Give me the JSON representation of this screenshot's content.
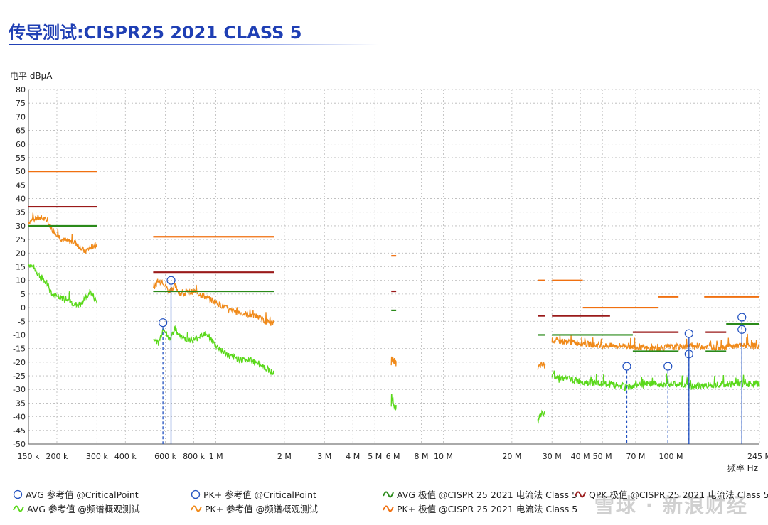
{
  "title": "传导测试:CISPR25 2021 CLASS 5",
  "watermark": "雪球 · 新浪财经",
  "colors": {
    "pk_limit": "#f07010",
    "qp_limit": "#9a1a1a",
    "avg_limit": "#2a8a1a",
    "pk_trace": "#f08a1a",
    "avg_trace": "#5ad81a",
    "marker": "#2050c0",
    "grid": "#b8b8b8"
  },
  "chart_data": {
    "type": "line",
    "title": "传导测试:CISPR25 2021 CLASS 5",
    "ylabel": "电平 dBµA",
    "xlabel": "频率 Hz",
    "x_scale": "log",
    "xlim": [
      150000,
      245000000
    ],
    "ylim": [
      -50,
      80
    ],
    "y_ticks": [
      80,
      75,
      70,
      65,
      60,
      55,
      50,
      45,
      40,
      35,
      30,
      25,
      20,
      15,
      10,
      5,
      0,
      -5,
      -10,
      -15,
      -20,
      -25,
      -30,
      -35,
      -40,
      -45,
      -50
    ],
    "x_ticks": [
      {
        "v": 150000,
        "label": "150 k"
      },
      {
        "v": 200000,
        "label": "200 k"
      },
      {
        "v": 300000,
        "label": "300 k"
      },
      {
        "v": 400000,
        "label": "400 k"
      },
      {
        "v": 600000,
        "label": "600 k"
      },
      {
        "v": 800000,
        "label": "800 k"
      },
      {
        "v": 1000000,
        "label": "1 M"
      },
      {
        "v": 2000000,
        "label": "2 M"
      },
      {
        "v": 3000000,
        "label": "3 M"
      },
      {
        "v": 4000000,
        "label": "4 M"
      },
      {
        "v": 5000000,
        "label": "5 M"
      },
      {
        "v": 6000000,
        "label": "6 M"
      },
      {
        "v": 8000000,
        "label": "8 M"
      },
      {
        "v": 10000000,
        "label": "10 M"
      },
      {
        "v": 20000000,
        "label": "20 M"
      },
      {
        "v": 30000000,
        "label": "30 M"
      },
      {
        "v": 40000000,
        "label": "40 M"
      },
      {
        "v": 50000000,
        "label": "50 M"
      },
      {
        "v": 70000000,
        "label": "70 M"
      },
      {
        "v": 100000000,
        "label": "100 M"
      },
      {
        "v": 245000000,
        "label": "245 M"
      }
    ],
    "limits": [
      {
        "kind": "pk",
        "x0": 150000,
        "x1": 300000,
        "y": 50
      },
      {
        "kind": "qp",
        "x0": 150000,
        "x1": 300000,
        "y": 37
      },
      {
        "kind": "avg",
        "x0": 150000,
        "x1": 300000,
        "y": 30
      },
      {
        "kind": "pk",
        "x0": 530000,
        "x1": 1800000,
        "y": 26
      },
      {
        "kind": "qp",
        "x0": 530000,
        "x1": 1800000,
        "y": 13
      },
      {
        "kind": "avg",
        "x0": 530000,
        "x1": 1800000,
        "y": 6
      },
      {
        "kind": "pk",
        "x0": 5900000,
        "x1": 6200000,
        "y": 19
      },
      {
        "kind": "qp",
        "x0": 5900000,
        "x1": 6200000,
        "y": 6
      },
      {
        "kind": "avg",
        "x0": 5900000,
        "x1": 6200000,
        "y": -1
      },
      {
        "kind": "pk",
        "x0": 26000000,
        "x1": 28000000,
        "y": 10
      },
      {
        "kind": "qp",
        "x0": 26000000,
        "x1": 28000000,
        "y": -3
      },
      {
        "kind": "avg",
        "x0": 26000000,
        "x1": 28000000,
        "y": -10
      },
      {
        "kind": "pk",
        "x0": 30000000,
        "x1": 41000000,
        "y": 10
      },
      {
        "kind": "pk",
        "x0": 41000000,
        "x1": 88000000,
        "y": 0
      },
      {
        "kind": "pk",
        "x0": 88000000,
        "x1": 108000000,
        "y": 4
      },
      {
        "kind": "pk",
        "x0": 140000000,
        "x1": 245000000,
        "y": 4
      },
      {
        "kind": "qp",
        "x0": 30000000,
        "x1": 54000000,
        "y": -3
      },
      {
        "kind": "qp",
        "x0": 68000000,
        "x1": 108000000,
        "y": -9
      },
      {
        "kind": "qp",
        "x0": 142000000,
        "x1": 175000000,
        "y": -9
      },
      {
        "kind": "avg",
        "x0": 30000000,
        "x1": 68000000,
        "y": -10
      },
      {
        "kind": "avg",
        "x0": 68000000,
        "x1": 108000000,
        "y": -16
      },
      {
        "kind": "avg",
        "x0": 142000000,
        "x1": 175000000,
        "y": -16
      },
      {
        "kind": "avg",
        "x0": 175000000,
        "x1": 245000000,
        "y": -6
      }
    ],
    "pk_trace": [
      {
        "x0": 150000,
        "x1": 300000,
        "pts": [
          [
            150000,
            31.5
          ],
          [
            160000,
            32.5
          ],
          [
            170000,
            33
          ],
          [
            180000,
            32
          ],
          [
            190000,
            29
          ],
          [
            200000,
            27
          ],
          [
            210000,
            25
          ],
          [
            220000,
            24.5
          ],
          [
            240000,
            24
          ],
          [
            255000,
            22
          ],
          [
            265000,
            20.5
          ],
          [
            280000,
            22
          ],
          [
            300000,
            23
          ]
        ]
      },
      {
        "x0": 530000,
        "x1": 1800000,
        "pts": [
          [
            530000,
            7
          ],
          [
            550000,
            9
          ],
          [
            580000,
            10
          ],
          [
            620000,
            6
          ],
          [
            660000,
            8
          ],
          [
            700000,
            5
          ],
          [
            800000,
            6
          ],
          [
            900000,
            4
          ],
          [
            1000000,
            2
          ],
          [
            1150000,
            -1
          ],
          [
            1300000,
            -2
          ],
          [
            1500000,
            -3
          ],
          [
            1650000,
            -5
          ],
          [
            1800000,
            -6
          ]
        ]
      },
      {
        "x0": 5900000,
        "x1": 6200000,
        "pts": [
          [
            5900000,
            -18
          ],
          [
            6000000,
            -19
          ],
          [
            6100000,
            -20
          ],
          [
            6200000,
            -20.5
          ]
        ]
      },
      {
        "x0": 26000000,
        "x1": 28000000,
        "pts": [
          [
            26000000,
            -22
          ],
          [
            27000000,
            -21
          ],
          [
            28000000,
            -21
          ]
        ]
      },
      {
        "x0": 30000000,
        "x1": 245000000,
        "pts": [
          [
            30000000,
            -12
          ],
          [
            40000000,
            -13
          ],
          [
            50000000,
            -14
          ],
          [
            65000000,
            -14
          ],
          [
            80000000,
            -15
          ],
          [
            100000000,
            -14.5
          ],
          [
            130000000,
            -14
          ],
          [
            160000000,
            -14.5
          ],
          [
            200000000,
            -14
          ],
          [
            245000000,
            -14
          ]
        ]
      }
    ],
    "avg_trace": [
      {
        "x0": 150000,
        "x1": 300000,
        "pts": [
          [
            150000,
            16
          ],
          [
            160000,
            14
          ],
          [
            170000,
            11
          ],
          [
            180000,
            9
          ],
          [
            190000,
            5
          ],
          [
            200000,
            4
          ],
          [
            220000,
            3
          ],
          [
            240000,
            1
          ],
          [
            255000,
            1
          ],
          [
            265000,
            3
          ],
          [
            280000,
            6
          ],
          [
            300000,
            2
          ]
        ]
      },
      {
        "x0": 530000,
        "x1": 1800000,
        "pts": [
          [
            530000,
            -12
          ],
          [
            560000,
            -13
          ],
          [
            590000,
            -7
          ],
          [
            620000,
            -12
          ],
          [
            660000,
            -8
          ],
          [
            700000,
            -11
          ],
          [
            800000,
            -12
          ],
          [
            900000,
            -9
          ],
          [
            1000000,
            -14
          ],
          [
            1150000,
            -18
          ],
          [
            1300000,
            -19
          ],
          [
            1500000,
            -20
          ],
          [
            1650000,
            -22
          ],
          [
            1800000,
            -24
          ]
        ]
      },
      {
        "x0": 5900000,
        "x1": 6200000,
        "pts": [
          [
            5900000,
            -32
          ],
          [
            6000000,
            -35
          ],
          [
            6100000,
            -36
          ],
          [
            6200000,
            -37
          ]
        ]
      },
      {
        "x0": 26000000,
        "x1": 28000000,
        "pts": [
          [
            26000000,
            -41
          ],
          [
            27000000,
            -39
          ],
          [
            28000000,
            -39
          ]
        ]
      },
      {
        "x0": 30000000,
        "x1": 245000000,
        "pts": [
          [
            30000000,
            -25
          ],
          [
            40000000,
            -27
          ],
          [
            50000000,
            -28
          ],
          [
            65000000,
            -29
          ],
          [
            80000000,
            -28
          ],
          [
            100000000,
            -28
          ],
          [
            130000000,
            -29
          ],
          [
            160000000,
            -28
          ],
          [
            200000000,
            -28
          ],
          [
            245000000,
            -28
          ]
        ]
      }
    ],
    "avg_markers": [
      [
        585000,
        -5.5
      ],
      [
        64000000,
        -21.5
      ],
      [
        97000000,
        -21.5
      ],
      [
        120000000,
        -17
      ],
      [
        205000000,
        -3.5
      ]
    ],
    "pk_markers": [
      [
        635000,
        10
      ],
      [
        120000000,
        -9.5
      ],
      [
        205000000,
        -8
      ]
    ],
    "legend": [
      {
        "label": "AVG 参考值 @CriticalPoint",
        "symbol": "circle",
        "color_key": "marker",
        "col": 0,
        "row": 0
      },
      {
        "label": "PK+ 参考值 @CriticalPoint",
        "symbol": "circle",
        "color_key": "marker",
        "col": 1,
        "row": 0
      },
      {
        "label": "AVG 极值 @CISPR 25 2021 电流法 Class 5",
        "symbol": "wave",
        "color_key": "avg_limit",
        "col": 2,
        "row": 0
      },
      {
        "label": "QPK 极值 @CISPR 25 2021 电流法 Class 5",
        "symbol": "wave",
        "color_key": "qp_limit",
        "col": 3,
        "row": 0
      },
      {
        "label": "AVG 参考值 @频谱概观测试",
        "symbol": "wave",
        "color_key": "avg_trace",
        "col": 0,
        "row": 1
      },
      {
        "label": "PK+ 参考值 @频谱概观测试",
        "symbol": "wave",
        "color_key": "pk_trace",
        "col": 1,
        "row": 1
      },
      {
        "label": "PK+ 极值 @CISPR 25 2021 电流法 Class 5",
        "symbol": "wave",
        "color_key": "pk_limit",
        "col": 2,
        "row": 1
      }
    ]
  }
}
